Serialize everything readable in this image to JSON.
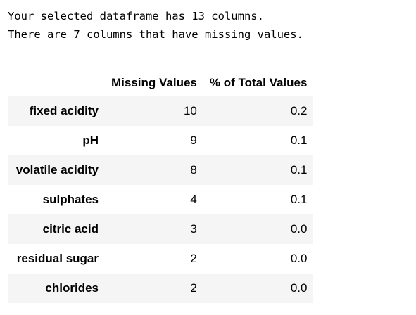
{
  "output": {
    "line1": "Your selected dataframe has 13 columns.",
    "line2": "There are 7 columns that have missing values."
  },
  "table": {
    "columns": [
      "Missing Values",
      "% of Total Values"
    ],
    "rows": [
      {
        "label": "fixed acidity",
        "missing": "10",
        "percent": "0.2"
      },
      {
        "label": "pH",
        "missing": "9",
        "percent": "0.1"
      },
      {
        "label": "volatile acidity",
        "missing": "8",
        "percent": "0.1"
      },
      {
        "label": "sulphates",
        "missing": "4",
        "percent": "0.1"
      },
      {
        "label": "citric acid",
        "missing": "3",
        "percent": "0.0"
      },
      {
        "label": "residual sugar",
        "missing": "2",
        "percent": "0.0"
      },
      {
        "label": "chlorides",
        "missing": "2",
        "percent": "0.0"
      }
    ]
  }
}
